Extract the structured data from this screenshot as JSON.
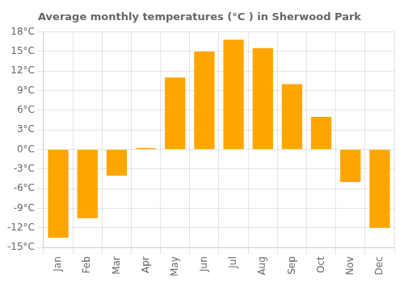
{
  "chart_data": {
    "type": "bar",
    "title": "Average monthly temperatures (°C ) in Sherwood Park",
    "categories": [
      "Jan",
      "Feb",
      "Mar",
      "Apr",
      "May",
      "Jun",
      "Jul",
      "Aug",
      "Sep",
      "Oct",
      "Nov",
      "Dec"
    ],
    "values": [
      -13.5,
      -10.5,
      -4.0,
      0.2,
      11.0,
      15.0,
      16.8,
      15.5,
      10.0,
      5.0,
      -5.0,
      -12.0
    ],
    "color": "#FFA500",
    "ylim": [
      -15,
      18
    ],
    "yticks": [
      {
        "value": -15,
        "label": "-15°C"
      },
      {
        "value": -12,
        "label": "-12°C"
      },
      {
        "value": -9,
        "label": "-9°C"
      },
      {
        "value": -6,
        "label": "-6°C"
      },
      {
        "value": -3,
        "label": "-3°C"
      },
      {
        "value": 0,
        "label": "0°C"
      },
      {
        "value": 3,
        "label": "3°C"
      },
      {
        "value": 6,
        "label": "6°C"
      },
      {
        "value": 9,
        "label": "9°C"
      },
      {
        "value": 12,
        "label": "12°C"
      },
      {
        "value": 15,
        "label": "15°C"
      },
      {
        "value": 18,
        "label": "18°C"
      }
    ],
    "grid": true
  }
}
